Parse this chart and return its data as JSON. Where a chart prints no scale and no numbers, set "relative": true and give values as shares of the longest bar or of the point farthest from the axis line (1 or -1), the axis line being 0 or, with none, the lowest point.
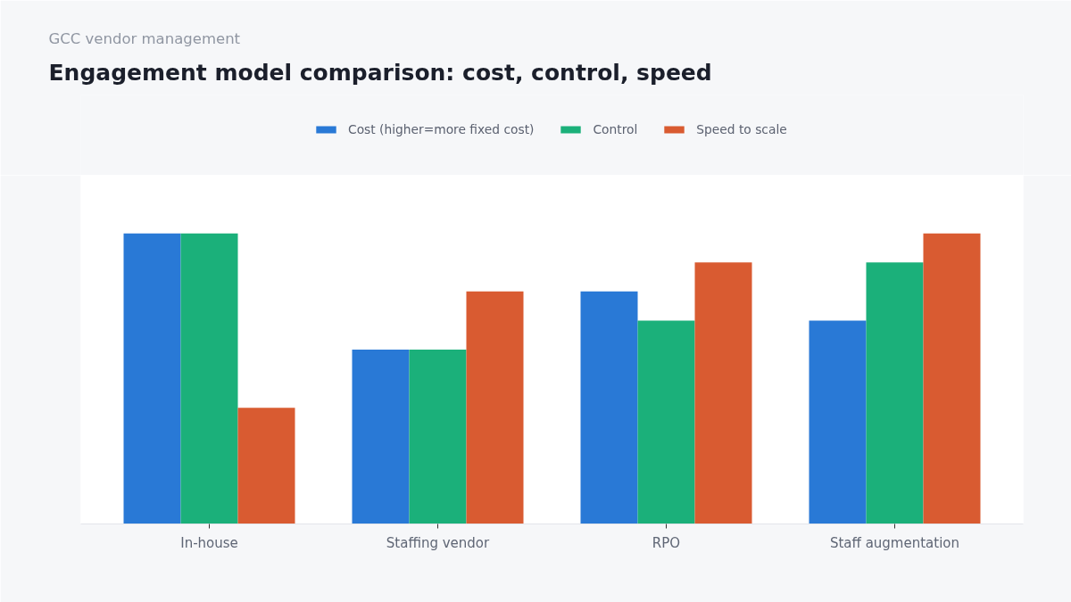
{
  "chart_data": {
    "type": "bar",
    "title": "Engagement model comparison: cost, control, speed",
    "subtitle": "GCC vendor management",
    "categories": [
      "In-house",
      "Staffing vendor",
      "RPO",
      "Staff augmentation"
    ],
    "relative": true,
    "series": [
      {
        "name": "Cost (higher=more fixed cost)",
        "color": "#2979d6",
        "values": [
          1,
          0.6,
          0.8,
          0.7
        ]
      },
      {
        "name": "Control",
        "color": "#1bb07a",
        "values": [
          1,
          0.6,
          0.7,
          0.9
        ]
      },
      {
        "name": "Speed to scale",
        "color": "#d95b31",
        "values": [
          0.4,
          0.8,
          0.9,
          1
        ]
      }
    ],
    "legend": "top"
  }
}
